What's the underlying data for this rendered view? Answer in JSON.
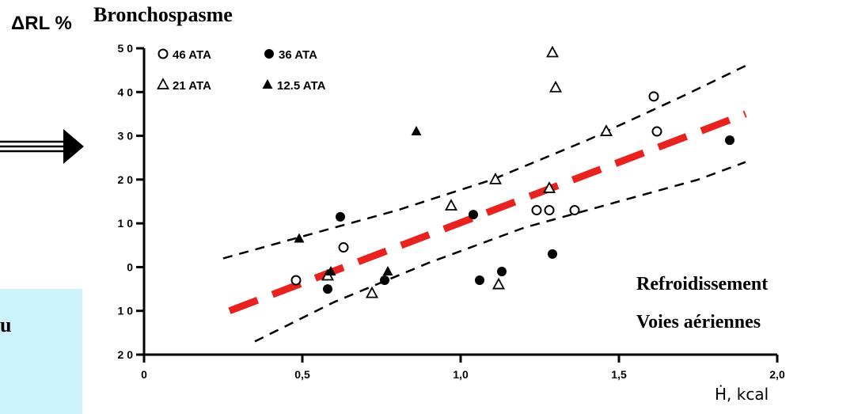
{
  "title": "Bronchospasme",
  "side_text": "u",
  "annotation_line1": "Refroidissement",
  "annotation_line2": "Voies aériennes",
  "colors": {
    "trend": "#e8221f",
    "side_box": "#ccf2fb",
    "ink": "#000000"
  },
  "chart_data": {
    "type": "scatter",
    "xlabel": "Ḣ, kcal",
    "ylabel": "ΔRL %",
    "xlim": [
      0,
      2.0
    ],
    "ylim": [
      -20,
      50
    ],
    "x_ticks": [
      {
        "value": 0,
        "label": "0"
      },
      {
        "value": 0.5,
        "label": "0,5"
      },
      {
        "value": 1.0,
        "label": "1,0"
      },
      {
        "value": 1.5,
        "label": "1,5"
      },
      {
        "value": 2.0,
        "label": "2,0"
      }
    ],
    "y_ticks": [
      {
        "value": 50,
        "label": "5 0"
      },
      {
        "value": 40,
        "label": "4 0"
      },
      {
        "value": 30,
        "label": "3 0"
      },
      {
        "value": 20,
        "label": "2 0"
      },
      {
        "value": 10,
        "label": "1 0"
      },
      {
        "value": 0,
        "label": "0"
      },
      {
        "value": -10,
        "label": "1 0"
      },
      {
        "value": -20,
        "label": "2 0"
      }
    ],
    "legend_placement": "top-left",
    "series": [
      {
        "name": "46 ATA",
        "marker": "circle-open",
        "points": [
          [
            0.48,
            -3
          ],
          [
            0.63,
            4.5
          ],
          [
            1.24,
            13
          ],
          [
            1.28,
            13
          ],
          [
            1.36,
            13
          ],
          [
            1.61,
            39
          ],
          [
            1.62,
            31
          ]
        ]
      },
      {
        "name": "36 ATA",
        "marker": "circle-filled",
        "points": [
          [
            0.58,
            -5
          ],
          [
            0.62,
            11.5
          ],
          [
            0.76,
            -3
          ],
          [
            1.04,
            12
          ],
          [
            1.06,
            -3
          ],
          [
            1.13,
            -1
          ],
          [
            1.29,
            3
          ],
          [
            1.85,
            29
          ]
        ]
      },
      {
        "name": "21 ATA",
        "marker": "triangle-open",
        "points": [
          [
            0.58,
            -2
          ],
          [
            0.72,
            -6
          ],
          [
            0.97,
            14
          ],
          [
            1.11,
            20
          ],
          [
            1.12,
            -4
          ],
          [
            1.28,
            18
          ],
          [
            1.29,
            49
          ],
          [
            1.3,
            41
          ],
          [
            1.46,
            31
          ]
        ]
      },
      {
        "name": "12.5 ATA",
        "marker": "triangle-filled",
        "points": [
          [
            0.49,
            6.5
          ],
          [
            0.59,
            -1
          ],
          [
            0.77,
            -1
          ],
          [
            0.86,
            31
          ]
        ]
      }
    ],
    "trend_line": {
      "x": [
        0.27,
        1.9
      ],
      "y": [
        -10,
        35
      ]
    },
    "confidence_upper": {
      "x": [
        0.25,
        0.5,
        0.8,
        1.1,
        1.4,
        1.7,
        1.9
      ],
      "y": [
        2,
        7,
        13,
        20,
        29,
        39,
        46
      ]
    },
    "confidence_lower": {
      "x": [
        0.35,
        0.6,
        0.9,
        1.2,
        1.5,
        1.75,
        1.9
      ],
      "y": [
        -17,
        -8,
        1,
        9,
        15,
        20,
        24
      ]
    }
  }
}
